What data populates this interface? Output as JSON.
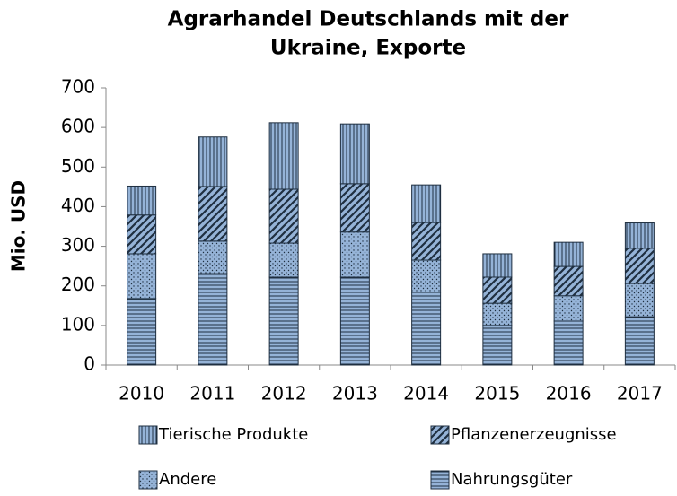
{
  "chart_data": {
    "type": "stacked_bar",
    "title": [
      "Agrarhandel Deutschlands mit der",
      "Ukraine, Exporte"
    ],
    "y_label": "Mio. USD",
    "categories": [
      "2010",
      "2011",
      "2012",
      "2013",
      "2014",
      "2015",
      "2016",
      "2017"
    ],
    "series": [
      {
        "name": "Nahrungsgüter",
        "color": "#95b3d7",
        "pattern": "horizontal",
        "values": [
          168,
          231,
          222,
          222,
          184,
          100,
          111,
          122
        ]
      },
      {
        "name": "Andere",
        "color": "#95b3d7",
        "pattern": "dots",
        "values": [
          113,
          82,
          86,
          114,
          81,
          56,
          64,
          84
        ]
      },
      {
        "name": "Pflanzenerzeugnisse",
        "color": "#95b3d7",
        "pattern": "diagonal",
        "values": [
          98,
          138,
          136,
          122,
          95,
          66,
          74,
          89
        ]
      },
      {
        "name": "Tierische Produkte",
        "color": "#95b3d7",
        "pattern": "vertical",
        "values": [
          73,
          125,
          168,
          151,
          95,
          59,
          61,
          64
        ]
      }
    ],
    "ylim": [
      0,
      700
    ],
    "yticks": [
      0,
      100,
      200,
      300,
      400,
      500,
      600,
      700
    ]
  }
}
